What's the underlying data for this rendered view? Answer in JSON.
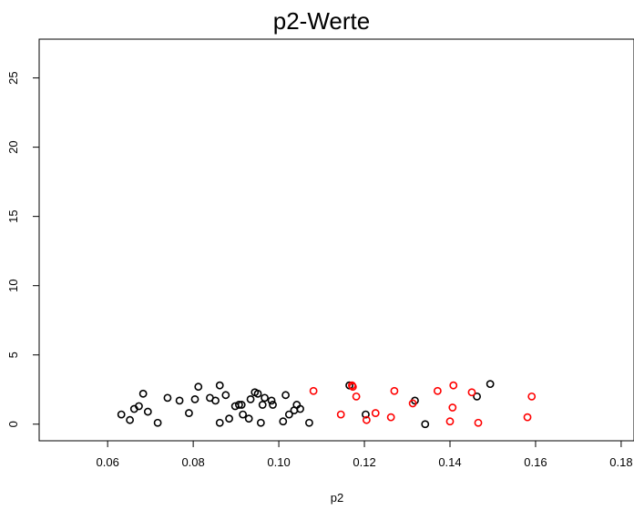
{
  "chart_data": {
    "type": "scatter",
    "title": "p2-Werte",
    "xlabel": "p2",
    "ylabel": "",
    "xlim": [
      0.044,
      0.183
    ],
    "ylim": [
      -1.2,
      27.8
    ],
    "xticks": [
      0.06,
      0.08,
      0.1,
      0.12,
      0.14,
      0.16,
      0.18
    ],
    "xtick_labels": [
      "0.06",
      "0.08",
      "0.10",
      "0.12",
      "0.14",
      "0.16",
      "0.18"
    ],
    "yticks": [
      0,
      5,
      10,
      15,
      20,
      25
    ],
    "ytick_labels": [
      "0",
      "5",
      "10",
      "15",
      "20",
      "25"
    ],
    "grid": false,
    "marker": "open-circle",
    "series": [
      {
        "color": "#000000",
        "points": [
          [
            0.0632,
            0.7
          ],
          [
            0.0652,
            0.3
          ],
          [
            0.0662,
            1.1
          ],
          [
            0.0673,
            1.3
          ],
          [
            0.0683,
            2.2
          ],
          [
            0.0694,
            0.9
          ],
          [
            0.0717,
            0.1
          ],
          [
            0.074,
            1.9
          ],
          [
            0.0768,
            1.7
          ],
          [
            0.079,
            0.8
          ],
          [
            0.0804,
            1.8
          ],
          [
            0.0812,
            2.7
          ],
          [
            0.0839,
            1.9
          ],
          [
            0.0852,
            1.7
          ],
          [
            0.0862,
            2.8
          ],
          [
            0.0862,
            0.1
          ],
          [
            0.0876,
            2.1
          ],
          [
            0.0884,
            0.4
          ],
          [
            0.0898,
            1.3
          ],
          [
            0.0907,
            1.4
          ],
          [
            0.0913,
            1.4
          ],
          [
            0.0916,
            0.7
          ],
          [
            0.093,
            0.4
          ],
          [
            0.0934,
            1.8
          ],
          [
            0.0944,
            2.3
          ],
          [
            0.0951,
            2.2
          ],
          [
            0.0958,
            0.1
          ],
          [
            0.0962,
            1.4
          ],
          [
            0.0967,
            1.9
          ],
          [
            0.0983,
            1.7
          ],
          [
            0.0986,
            1.4
          ],
          [
            0.101,
            0.2
          ],
          [
            0.1016,
            2.1
          ],
          [
            0.1024,
            0.7
          ],
          [
            0.1036,
            1.0
          ],
          [
            0.1042,
            1.4
          ],
          [
            0.105,
            1.1
          ],
          [
            0.1071,
            0.1
          ],
          [
            0.1165,
            2.8
          ],
          [
            0.1203,
            0.7
          ],
          [
            0.1318,
            1.7
          ],
          [
            0.1342,
            0.0
          ],
          [
            0.1463,
            2.0
          ],
          [
            0.1494,
            2.9
          ]
        ]
      },
      {
        "color": "#ff0000",
        "points": [
          [
            0.1081,
            2.4
          ],
          [
            0.1145,
            0.7
          ],
          [
            0.1171,
            2.8
          ],
          [
            0.1173,
            2.7
          ],
          [
            0.1181,
            2.0
          ],
          [
            0.1205,
            0.3
          ],
          [
            0.1226,
            0.8
          ],
          [
            0.1262,
            0.5
          ],
          [
            0.127,
            2.4
          ],
          [
            0.1313,
            1.5
          ],
          [
            0.1371,
            2.4
          ],
          [
            0.14,
            0.2
          ],
          [
            0.1406,
            1.2
          ],
          [
            0.1408,
            2.8
          ],
          [
            0.1451,
            2.3
          ],
          [
            0.1466,
            0.1
          ],
          [
            0.1581,
            0.5
          ],
          [
            0.1591,
            2.0
          ]
        ]
      }
    ]
  }
}
